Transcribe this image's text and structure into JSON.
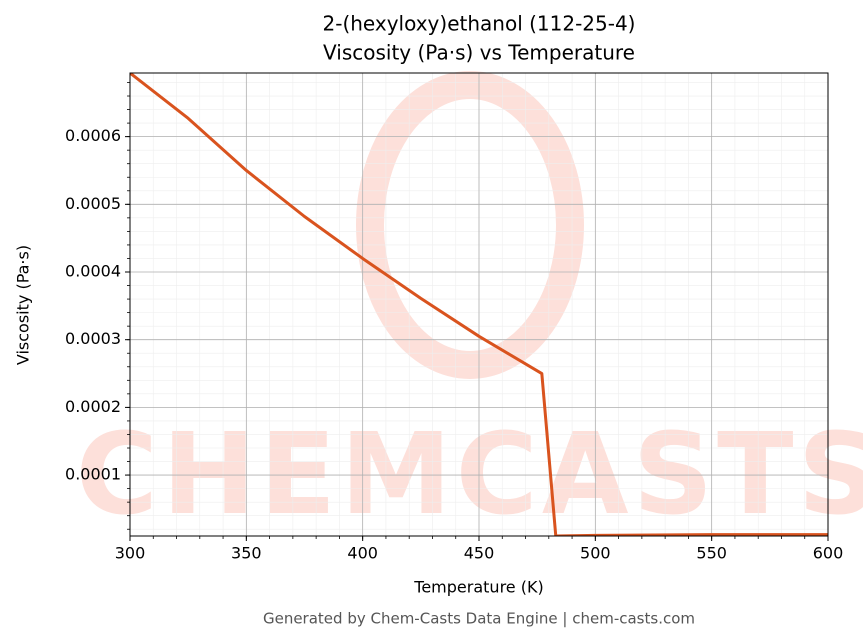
{
  "chart_data": {
    "type": "line",
    "title": "2-(hexyloxy)ethanol (112-25-4)",
    "subtitle": "Viscosity (Pa·s) vs Temperature",
    "x_label": "Temperature (K)",
    "y_label": "Viscosity (Pa·s)",
    "footer": "Generated by Chem-Casts Data Engine | chem-casts.com",
    "watermark": "CHEMCASTS",
    "x": [
      300,
      325,
      350,
      375,
      400,
      425,
      450,
      477,
      483,
      500,
      550,
      600
    ],
    "series": [
      {
        "name": "Viscosity",
        "color": "#d9531e",
        "values": [
          0.000694,
          0.000627,
          0.00055,
          0.000482,
          0.00042,
          0.000361,
          0.000305,
          0.00025,
          1e-05,
          1.1e-05,
          1.2e-05,
          1.2e-05
        ]
      }
    ],
    "xlim": [
      300,
      600
    ],
    "xticks": [
      300,
      350,
      400,
      450,
      500,
      550,
      600
    ],
    "ylim": [
      1e-05,
      0.000694
    ],
    "yticks": [
      0.0001,
      0.0002,
      0.0003,
      0.0004,
      0.0005,
      0.0006
    ],
    "grid": true,
    "minor_grid": true
  }
}
